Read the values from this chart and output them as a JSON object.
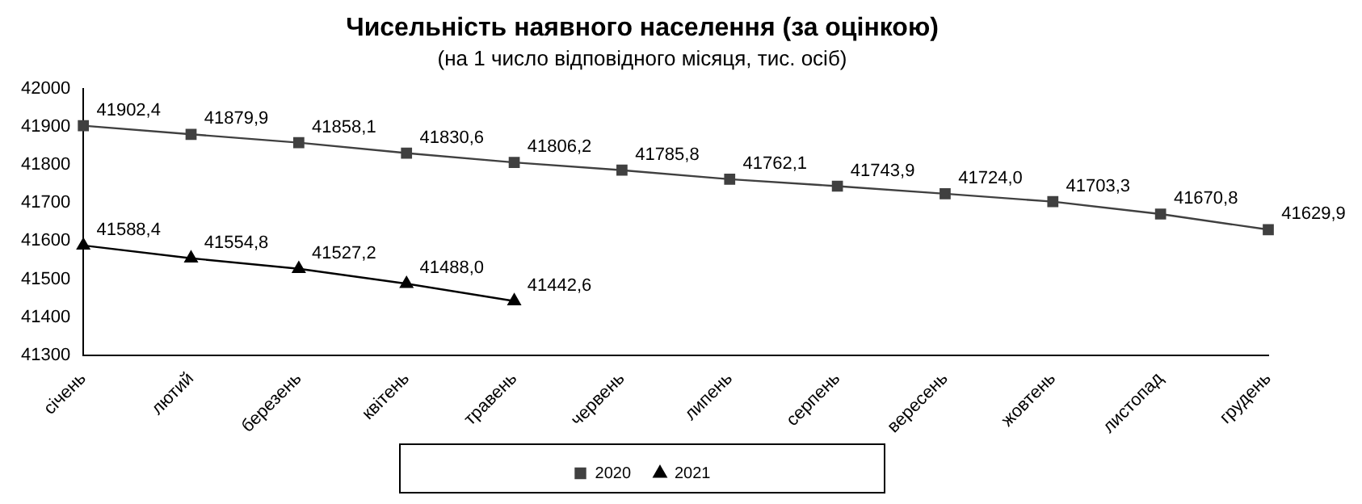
{
  "chart_data": {
    "type": "line",
    "title": "Чисельність наявного населення (за оцінкою)",
    "subtitle": "(на 1 число відповідного місяця, тис. осіб)",
    "categories": [
      "січень",
      "лютий",
      "березень",
      "квітень",
      "травень",
      "червень",
      "липень",
      "серпень",
      "вересень",
      "жовтень",
      "листопад",
      "грудень"
    ],
    "series": [
      {
        "name": "2020",
        "color": "#404040",
        "marker": "square",
        "values": [
          41902.4,
          41879.9,
          41858.1,
          41830.6,
          41806.2,
          41785.8,
          41762.1,
          41743.9,
          41724.0,
          41703.3,
          41670.8,
          41629.9
        ],
        "value_labels": [
          "41902,4",
          "41879,9",
          "41858,1",
          "41830,6",
          "41806,2",
          "41785,8",
          "41762,1",
          "41743,9",
          "41724,0",
          "41703,3",
          "41670,8",
          "41629,9"
        ]
      },
      {
        "name": "2021",
        "color": "#000000",
        "marker": "triangle",
        "values": [
          41588.4,
          41554.8,
          41527.2,
          41488.0,
          41442.6,
          null,
          null,
          null,
          null,
          null,
          null,
          null
        ],
        "value_labels": [
          "41588,4",
          "41554,8",
          "41527,2",
          "41488,0",
          "41442,6",
          null,
          null,
          null,
          null,
          null,
          null,
          null
        ]
      }
    ],
    "ylim": [
      41300,
      42000
    ],
    "yticks": [
      41300,
      41400,
      41500,
      41600,
      41700,
      41800,
      41900,
      42000
    ],
    "grid": false,
    "legend": "bottom",
    "line_style": "solid"
  }
}
